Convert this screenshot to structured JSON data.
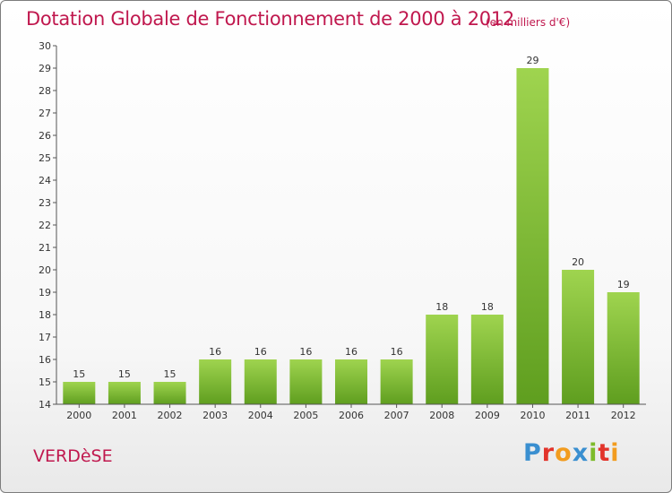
{
  "header": {
    "title": "Dotation Globale de Fonctionnement de 2000 à 2012",
    "unit_note": "(en milliers d'€)"
  },
  "footer": {
    "commune": "VERDèSE",
    "brand": {
      "letters": [
        "P",
        "r",
        "o",
        "x",
        "i",
        "t",
        "i"
      ],
      "colors": [
        "#3a8fd0",
        "#e2342b",
        "#f29c1f",
        "#3a8fd0",
        "#7dbb2a",
        "#e2342b",
        "#f29c1f"
      ]
    }
  },
  "chart_data": {
    "type": "bar",
    "categories": [
      "2000",
      "2001",
      "2002",
      "2003",
      "2004",
      "2005",
      "2006",
      "2007",
      "2008",
      "2009",
      "2010",
      "2011",
      "2012"
    ],
    "values": [
      15,
      15,
      15,
      16,
      16,
      16,
      16,
      16,
      18,
      18,
      29,
      20,
      19
    ],
    "ylim": [
      14,
      30
    ],
    "yticks": [
      "14",
      "15",
      "16",
      "17",
      "18",
      "19",
      "20",
      "21",
      "22",
      "23",
      "24",
      "25",
      "26",
      "27",
      "28",
      "29",
      "30"
    ],
    "grid": false,
    "bar_color": "#7ab834",
    "bar_color_light": "#9fd44f"
  }
}
